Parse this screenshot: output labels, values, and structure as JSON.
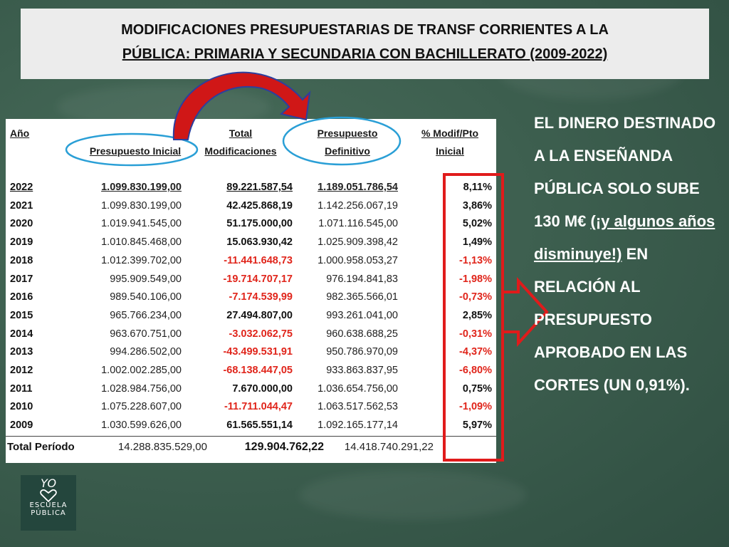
{
  "title": {
    "line1": "MODIFICACIONES PRESUPUESTARIAS DE TRANSF CORRIENTES A LA",
    "line2": "PÚBLICA: PRIMARIA Y SECUNDARIA  CON BACHILLERATO (2009-2022)"
  },
  "table": {
    "headers": {
      "year": "Año",
      "initial": "Presupuesto Inicial",
      "total_mod_1": "Total",
      "total_mod_2": "Modificaciones",
      "definitive_1": "Presupuesto",
      "definitive_2": "Definitivo",
      "pct_1": "% Modif/Pto",
      "pct_2": "Inicial"
    },
    "rows": [
      {
        "year": "2022",
        "initial": "1.099.830.199,00",
        "mod": "89.221.587,54",
        "definitive": "1.189.051.786,54",
        "pct": "8,11%",
        "neg": false
      },
      {
        "year": "2021",
        "initial": "1.099.830.199,00",
        "mod": "42.425.868,19",
        "definitive": "1.142.256.067,19",
        "pct": "3,86%",
        "neg": false
      },
      {
        "year": "2020",
        "initial": "1.019.941.545,00",
        "mod": "51.175.000,00",
        "definitive": "1.071.116.545,00",
        "pct": "5,02%",
        "neg": false
      },
      {
        "year": "2019",
        "initial": "1.010.845.468,00",
        "mod": "15.063.930,42",
        "definitive": "1.025.909.398,42",
        "pct": "1,49%",
        "neg": false
      },
      {
        "year": "2018",
        "initial": "1.012.399.702,00",
        "mod": "-11.441.648,73",
        "definitive": "1.000.958.053,27",
        "pct": "-1,13%",
        "neg": true
      },
      {
        "year": "2017",
        "initial": "995.909.549,00",
        "mod": "-19.714.707,17",
        "definitive": "976.194.841,83",
        "pct": "-1,98%",
        "neg": true
      },
      {
        "year": "2016",
        "initial": "989.540.106,00",
        "mod": "-7.174.539,99",
        "definitive": "982.365.566,01",
        "pct": "-0,73%",
        "neg": true
      },
      {
        "year": "2015",
        "initial": "965.766.234,00",
        "mod": "27.494.807,00",
        "definitive": "993.261.041,00",
        "pct": "2,85%",
        "neg": false
      },
      {
        "year": "2014",
        "initial": "963.670.751,00",
        "mod": "-3.032.062,75",
        "definitive": "960.638.688,25",
        "pct": "-0,31%",
        "neg": true
      },
      {
        "year": "2013",
        "initial": "994.286.502,00",
        "mod": "-43.499.531,91",
        "definitive": "950.786.970,09",
        "pct": "-4,37%",
        "neg": true
      },
      {
        "year": "2012",
        "initial": "1.002.002.285,00",
        "mod": "-68.138.447,05",
        "definitive": "933.863.837,95",
        "pct": "-6,80%",
        "neg": true
      },
      {
        "year": "2011",
        "initial": "1.028.984.756,00",
        "mod": "7.670.000,00",
        "definitive": "1.036.654.756,00",
        "pct": "0,75%",
        "neg": false
      },
      {
        "year": "2010",
        "initial": "1.075.228.607,00",
        "mod": "-11.711.044,47",
        "definitive": "1.063.517.562,53",
        "pct": "-1,09%",
        "neg": true
      },
      {
        "year": "2009",
        "initial": "1.030.599.626,00",
        "mod": "61.565.551,14",
        "definitive": "1.092.165.177,14",
        "pct": "5,97%",
        "neg": false
      }
    ],
    "total": {
      "label": "Total Período",
      "initial": "14.288.835.529,00",
      "mod": "129.904.762,22",
      "definitive": "14.418.740.291,22"
    }
  },
  "side_text": {
    "p1": "EL DINERO DESTINADO A LA ENSEÑANDA PÚBLICA SOLO SUBE 130 M€ ",
    "p2": "(¡y algunos años disminuye!)",
    "p3": " EN RELACIÓN AL PRESUPUESTO APROBADO EN LAS CORTES (UN 0,91%)."
  },
  "logo": {
    "yo": "YO",
    "line1": "ESCUELA",
    "line2": "PÚBLICA"
  },
  "colors": {
    "background": "#3d5f4f",
    "negative": "#e0251b",
    "highlight_box": "#e01b1b",
    "ellipse": "#2a9fd6",
    "arrow": "#d01717",
    "arrow_outline": "#2d3f9e"
  }
}
